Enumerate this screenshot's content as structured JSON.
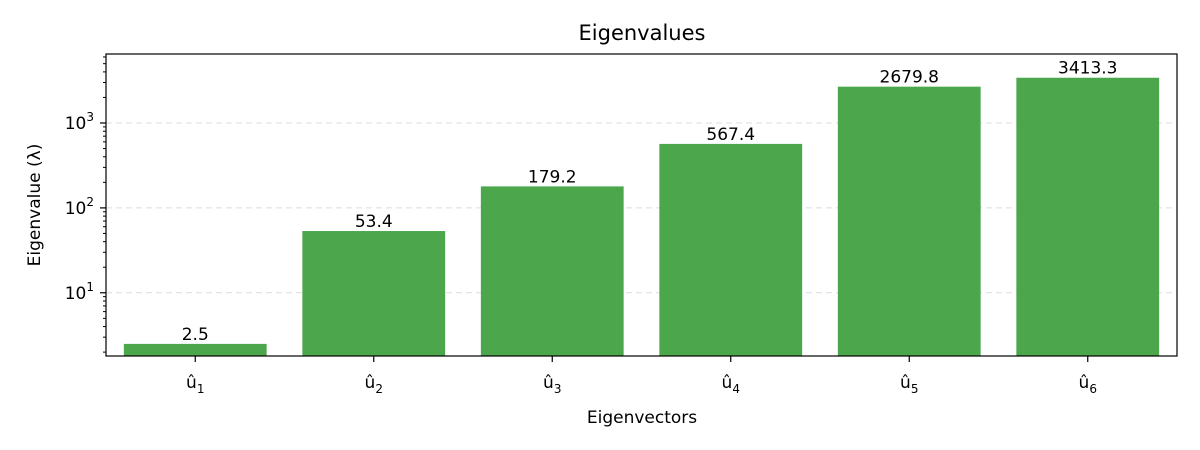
{
  "chart_data": {
    "type": "bar",
    "title": "Eigenvalues",
    "xlabel": "Eigenvectors",
    "ylabel": "Eigenvalue (λ)",
    "yscale": "log",
    "ylim": [
      1.8,
      6500
    ],
    "y_ticks": [
      {
        "value": 10,
        "base": "10",
        "exp": "1"
      },
      {
        "value": 100,
        "base": "10",
        "exp": "2"
      },
      {
        "value": 1000,
        "base": "10",
        "exp": "3"
      }
    ],
    "categories": [
      {
        "base": "û",
        "sub": "1"
      },
      {
        "base": "û",
        "sub": "2"
      },
      {
        "base": "û",
        "sub": "3"
      },
      {
        "base": "û",
        "sub": "4"
      },
      {
        "base": "û",
        "sub": "5"
      },
      {
        "base": "û",
        "sub": "6"
      }
    ],
    "values": [
      2.5,
      53.4,
      179.2,
      567.4,
      2679.8,
      3413.3
    ],
    "value_labels": [
      "2.5",
      "53.4",
      "179.2",
      "567.4",
      "2679.8",
      "3413.3"
    ],
    "bar_color": "#4ca64c",
    "grid": "horizontal dashed",
    "legend": "none"
  }
}
